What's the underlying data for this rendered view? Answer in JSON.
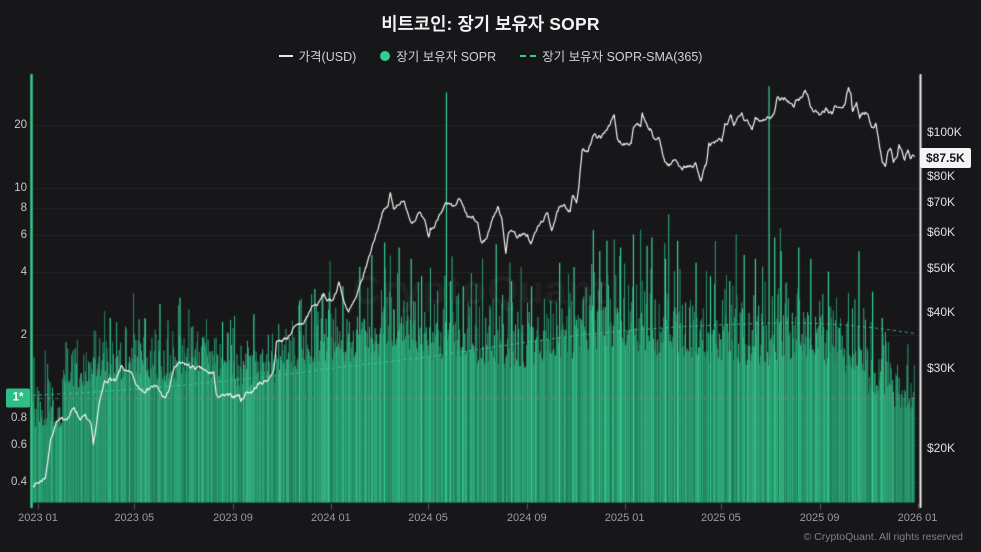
{
  "header": {
    "title": "비트코인: 장기 보유자 SOPR"
  },
  "legend": [
    {
      "label": "가격(USD)",
      "marker": "line",
      "color": "#e8e8ea"
    },
    {
      "label": "장기 보유자 SOPR",
      "marker": "dot",
      "color": "#2fd08c"
    },
    {
      "label": "장기 보유자 SOPR-SMA(365)",
      "marker": "dashed-line",
      "color": "#2fd08c"
    }
  ],
  "watermark": "CryptoQuant",
  "footer": "© CryptoQuant. All rights reserved",
  "colors": {
    "background": "#17171a",
    "gridline": "rgba(255,255,255,0.055)",
    "baseline_dash": "rgba(140,140,148,0.55)",
    "bar_green": "#2fbe87",
    "spike_green": "#35d694",
    "price_line": "#f3f3f5",
    "sma_line": "rgba(62,214,158,0.8)",
    "axis_left": "#2ed089",
    "axis_right": "#f0f0f2"
  },
  "chart_data": {
    "type": "mixed",
    "title": "비트코인: 장기 보유자 SOPR",
    "day_zero_date": "2023-01-01",
    "day_range": [
      -6,
      1092
    ],
    "y_left": {
      "name": "장기 보유자 SOPR",
      "scale": "log",
      "min": 0.316,
      "max": 34.5,
      "ticks": [
        {
          "v": 20,
          "label": "20"
        },
        {
          "v": 10,
          "label": "10"
        },
        {
          "v": 8,
          "label": "8"
        },
        {
          "v": 6,
          "label": "6"
        },
        {
          "v": 4,
          "label": "4"
        },
        {
          "v": 2,
          "label": "2"
        },
        {
          "v": 0.8,
          "label": "0.8"
        },
        {
          "v": 0.6,
          "label": "0.6"
        },
        {
          "v": 0.4,
          "label": "0.4"
        }
      ],
      "baseline": {
        "v": 1,
        "label": "1*"
      }
    },
    "y_right": {
      "name": "가격(USD)",
      "scale": "log",
      "min": 15.1,
      "max": 133.6,
      "unit": "K USD",
      "ticks": [
        {
          "v": 100,
          "label": "$100K"
        },
        {
          "v": 80,
          "label": "$80K"
        },
        {
          "v": 70,
          "label": "$70K"
        },
        {
          "v": 60,
          "label": "$60K"
        },
        {
          "v": 50,
          "label": "$50K"
        },
        {
          "v": 40,
          "label": "$40K"
        },
        {
          "v": 30,
          "label": "$30K"
        },
        {
          "v": 20,
          "label": "$20K"
        }
      ],
      "last": {
        "v": 87.5,
        "label": "$87.5K"
      }
    },
    "x": {
      "ticks": [
        {
          "day": 0,
          "label": "2023 01"
        },
        {
          "day": 120,
          "label": "2023 05"
        },
        {
          "day": 243,
          "label": "2023 09"
        },
        {
          "day": 365,
          "label": "2024 01"
        },
        {
          "day": 486,
          "label": "2024 05"
        },
        {
          "day": 609,
          "label": "2024 09"
        },
        {
          "day": 731,
          "label": "2025 01"
        },
        {
          "day": 851,
          "label": "2025 05"
        },
        {
          "day": 974,
          "label": "2025 09"
        },
        {
          "day": 1096,
          "label": "2026 01"
        }
      ]
    },
    "price_usd": {
      "unit": "K USD",
      "anchors": [
        [
          -6,
          16.55
        ],
        [
          2,
          16.8
        ],
        [
          9,
          17.2
        ],
        [
          13,
          19.1
        ],
        [
          16,
          21.0
        ],
        [
          23,
          22.8
        ],
        [
          30,
          23.1
        ],
        [
          38,
          23.4
        ],
        [
          45,
          24.6
        ],
        [
          52,
          23.2
        ],
        [
          59,
          23.5
        ],
        [
          66,
          22.4
        ],
        [
          69,
          20.2
        ],
        [
          76,
          24.8
        ],
        [
          83,
          28.0
        ],
        [
          90,
          28.4
        ],
        [
          97,
          28.0
        ],
        [
          104,
          30.3
        ],
        [
          111,
          29.4
        ],
        [
          118,
          29.0
        ],
        [
          121,
          27.7
        ],
        [
          128,
          27.0
        ],
        [
          135,
          26.8
        ],
        [
          142,
          27.4
        ],
        [
          149,
          27.2
        ],
        [
          158,
          25.6
        ],
        [
          163,
          26.8
        ],
        [
          170,
          30.2
        ],
        [
          177,
          30.7
        ],
        [
          184,
          30.6
        ],
        [
          191,
          30.2
        ],
        [
          198,
          30.0
        ],
        [
          205,
          29.9
        ],
        [
          212,
          29.2
        ],
        [
          219,
          29.4
        ],
        [
          222,
          26.1
        ],
        [
          229,
          26.0
        ],
        [
          236,
          26.1
        ],
        [
          243,
          26.0
        ],
        [
          250,
          26.2
        ],
        [
          253,
          25.4
        ],
        [
          260,
          26.6
        ],
        [
          267,
          26.6
        ],
        [
          274,
          27.6
        ],
        [
          281,
          28.0
        ],
        [
          288,
          28.4
        ],
        [
          294,
          29.9
        ],
        [
          297,
          34.2
        ],
        [
          304,
          34.6
        ],
        [
          311,
          35.1
        ],
        [
          318,
          36.6
        ],
        [
          325,
          37.4
        ],
        [
          331,
          37.8
        ],
        [
          335,
          38.8
        ],
        [
          342,
          41.3
        ],
        [
          349,
          41.5
        ],
        [
          356,
          43.8
        ],
        [
          361,
          42.2
        ],
        [
          366,
          42.3
        ],
        [
          371,
          44.0
        ],
        [
          375,
          46.7
        ],
        [
          380,
          42.8
        ],
        [
          387,
          39.9
        ],
        [
          394,
          42.1
        ],
        [
          397,
          43.1
        ],
        [
          404,
          47.2
        ],
        [
          411,
          51.8
        ],
        [
          418,
          57.1
        ],
        [
          425,
          62.4
        ],
        [
          429,
          66.2
        ],
        [
          436,
          68.5
        ],
        [
          439,
          73.1
        ],
        [
          443,
          67.8
        ],
        [
          450,
          69.6
        ],
        [
          457,
          69.7
        ],
        [
          464,
          63.8
        ],
        [
          468,
          63.4
        ],
        [
          475,
          66.1
        ],
        [
          482,
          63.1
        ],
        [
          487,
          58.3
        ],
        [
          489,
          61.0
        ],
        [
          494,
          61.6
        ],
        [
          501,
          66.4
        ],
        [
          508,
          69.1
        ],
        [
          515,
          68.5
        ],
        [
          518,
          67.8
        ],
        [
          525,
          71.1
        ],
        [
          528,
          69.3
        ],
        [
          535,
          64.9
        ],
        [
          542,
          64.3
        ],
        [
          548,
          62.9
        ],
        [
          552,
          56.8
        ],
        [
          559,
          58.1
        ],
        [
          566,
          64.2
        ],
        [
          573,
          67.9
        ],
        [
          578,
          64.6
        ],
        [
          583,
          54.2
        ],
        [
          586,
          59.1
        ],
        [
          590,
          61.0
        ],
        [
          597,
          58.8
        ],
        [
          604,
          59.0
        ],
        [
          610,
          59.2
        ],
        [
          614,
          56.3
        ],
        [
          621,
          60.7
        ],
        [
          628,
          63.4
        ],
        [
          635,
          65.9
        ],
        [
          640,
          60.9
        ],
        [
          642,
          62.3
        ],
        [
          649,
          67.6
        ],
        [
          656,
          68.3
        ],
        [
          663,
          67.1
        ],
        [
          666,
          72.7
        ],
        [
          671,
          69.5
        ],
        [
          674,
          75.7
        ],
        [
          678,
          90.6
        ],
        [
          685,
          91.1
        ],
        [
          692,
          98.1
        ],
        [
          699,
          97.8
        ],
        [
          701,
          96.5
        ],
        [
          708,
          101.3
        ],
        [
          715,
          106.2
        ],
        [
          718,
          108.2
        ],
        [
          722,
          95.9
        ],
        [
          729,
          94.3
        ],
        [
          732,
          94.4
        ],
        [
          739,
          94.8
        ],
        [
          742,
          102.3
        ],
        [
          746,
          104.6
        ],
        [
          751,
          102.4
        ],
        [
          753,
          109.1
        ],
        [
          760,
          101.4
        ],
        [
          763,
          101.5
        ],
        [
          767,
          96.7
        ],
        [
          774,
          96.2
        ],
        [
          781,
          86.2
        ],
        [
          784,
          84.8
        ],
        [
          788,
          84.4
        ],
        [
          791,
          86.1
        ],
        [
          795,
          86.9
        ],
        [
          802,
          82.9
        ],
        [
          809,
          84.1
        ],
        [
          816,
          83.4
        ],
        [
          819,
          85.3
        ],
        [
          822,
          82.6
        ],
        [
          826,
          78.5
        ],
        [
          829,
          81.6
        ],
        [
          833,
          85.2
        ],
        [
          836,
          93.9
        ],
        [
          843,
          94.1
        ],
        [
          850,
          96.6
        ],
        [
          852,
          94.3
        ],
        [
          856,
          103.3
        ],
        [
          859,
          103.8
        ],
        [
          863,
          109.1
        ],
        [
          867,
          103.9
        ],
        [
          870,
          105.8
        ],
        [
          877,
          109.1
        ],
        [
          881,
          105.6
        ],
        [
          883,
          105.7
        ],
        [
          890,
          101.7
        ],
        [
          894,
          108.0
        ],
        [
          901,
          105.7
        ],
        [
          908,
          107.4
        ],
        [
          913,
          107.3
        ],
        [
          917,
          109.0
        ],
        [
          921,
          118.1
        ],
        [
          924,
          117.6
        ],
        [
          931,
          119.1
        ],
        [
          938,
          115.1
        ],
        [
          942,
          113.6
        ],
        [
          945,
          117.5
        ],
        [
          952,
          119.1
        ],
        [
          956,
          124.4
        ],
        [
          959,
          121.1
        ],
        [
          963,
          113.1
        ],
        [
          966,
          111.1
        ],
        [
          970,
          111.6
        ],
        [
          973,
          108.8
        ],
        [
          975,
          108.3
        ],
        [
          982,
          112.6
        ],
        [
          986,
          109.6
        ],
        [
          989,
          109.4
        ],
        [
          993,
          114.1
        ],
        [
          1000,
          112.2
        ],
        [
          1005,
          114.1
        ],
        [
          1010,
          125.5
        ],
        [
          1013,
          121.8
        ],
        [
          1015,
          111.1
        ],
        [
          1020,
          115.1
        ],
        [
          1024,
          108.1
        ],
        [
          1027,
          110.2
        ],
        [
          1034,
          110.1
        ],
        [
          1036,
          106.6
        ],
        [
          1041,
          101.6
        ],
        [
          1044,
          103.6
        ],
        [
          1048,
          95.1
        ],
        [
          1052,
          86.6
        ],
        [
          1056,
          83.8
        ],
        [
          1059,
          90.6
        ],
        [
          1063,
          91.6
        ],
        [
          1066,
          86.1
        ],
        [
          1070,
          87.3
        ],
        [
          1073,
          93.1
        ],
        [
          1077,
          90.1
        ],
        [
          1080,
          86.9
        ],
        [
          1084,
          91.1
        ],
        [
          1087,
          87.4
        ],
        [
          1090,
          88.6
        ],
        [
          1092,
          87.5
        ]
      ]
    },
    "sopr_sma365": {
      "anchors": [
        [
          -6,
          1.03
        ],
        [
          60,
          1.06
        ],
        [
          120,
          1.1
        ],
        [
          180,
          1.15
        ],
        [
          240,
          1.21
        ],
        [
          300,
          1.28
        ],
        [
          365,
          1.38
        ],
        [
          425,
          1.47
        ],
        [
          486,
          1.57
        ],
        [
          547,
          1.7
        ],
        [
          609,
          1.84
        ],
        [
          670,
          1.98
        ],
        [
          731,
          2.09
        ],
        [
          790,
          2.17
        ],
        [
          851,
          2.23
        ],
        [
          912,
          2.27
        ],
        [
          943,
          2.28
        ],
        [
          974,
          2.26
        ],
        [
          1004,
          2.23
        ],
        [
          1035,
          2.17
        ],
        [
          1065,
          2.1
        ],
        [
          1092,
          2.03
        ]
      ]
    },
    "sopr_bars": {
      "resolution": "daily",
      "seed": 11,
      "months": [
        [
          0.78,
          0.25
        ],
        [
          1.15,
          0.28
        ],
        [
          1.3,
          0.3
        ],
        [
          1.35,
          0.3
        ],
        [
          1.35,
          0.33
        ],
        [
          1.32,
          0.33
        ],
        [
          1.45,
          0.33
        ],
        [
          1.35,
          0.3
        ],
        [
          1.25,
          0.3
        ],
        [
          1.3,
          0.3
        ],
        [
          1.5,
          0.33
        ],
        [
          1.6,
          0.34
        ],
        [
          1.65,
          0.36
        ],
        [
          1.78,
          0.38
        ],
        [
          1.95,
          0.42
        ],
        [
          1.9,
          0.42
        ],
        [
          1.7,
          0.4
        ],
        [
          1.75,
          0.4
        ],
        [
          1.6,
          0.38
        ],
        [
          1.55,
          0.38
        ],
        [
          1.6,
          0.4
        ],
        [
          1.65,
          0.4
        ],
        [
          1.92,
          0.46
        ],
        [
          1.95,
          0.46
        ],
        [
          1.9,
          0.45
        ],
        [
          1.85,
          0.45
        ],
        [
          1.8,
          0.43
        ],
        [
          1.62,
          0.4
        ],
        [
          1.65,
          0.4
        ],
        [
          1.6,
          0.4
        ],
        [
          1.7,
          0.46
        ],
        [
          1.65,
          0.43
        ],
        [
          1.6,
          0.43
        ],
        [
          1.45,
          0.4
        ],
        [
          1.15,
          0.32
        ],
        [
          0.95,
          0.22
        ]
      ],
      "spikes": [
        [
          90,
          2.4
        ],
        [
          152,
          2.8
        ],
        [
          177,
          3.0
        ],
        [
          230,
          2.3
        ],
        [
          269,
          2.5
        ],
        [
          326,
          2.9
        ],
        [
          345,
          3.3
        ],
        [
          363,
          3.2
        ],
        [
          380,
          3.4
        ],
        [
          401,
          4.2
        ],
        [
          416,
          4.8
        ],
        [
          432,
          5.5
        ],
        [
          450,
          5.2
        ],
        [
          465,
          4.6
        ],
        [
          478,
          3.8
        ],
        [
          509,
          28.5
        ],
        [
          514,
          3.6
        ],
        [
          530,
          3.4
        ],
        [
          571,
          5.4
        ],
        [
          590,
          3.6
        ],
        [
          615,
          3.4
        ],
        [
          650,
          4.4
        ],
        [
          668,
          4.2
        ],
        [
          692,
          6.3
        ],
        [
          700,
          5.0
        ],
        [
          709,
          5.6
        ],
        [
          726,
          5.2
        ],
        [
          742,
          6.0
        ],
        [
          759,
          5.3
        ],
        [
          765,
          5.8
        ],
        [
          782,
          4.6
        ],
        [
          797,
          5.6
        ],
        [
          820,
          4.4
        ],
        [
          838,
          3.8
        ],
        [
          862,
          3.6
        ],
        [
          880,
          4.8
        ],
        [
          894,
          4.6
        ],
        [
          911,
          30.5
        ],
        [
          918,
          5.8
        ],
        [
          926,
          5.0
        ],
        [
          948,
          5.2
        ],
        [
          963,
          4.6
        ],
        [
          985,
          4.0
        ],
        [
          1023,
          5.0
        ],
        [
          1040,
          3.2
        ],
        [
          1052,
          2.4
        ]
      ]
    }
  }
}
